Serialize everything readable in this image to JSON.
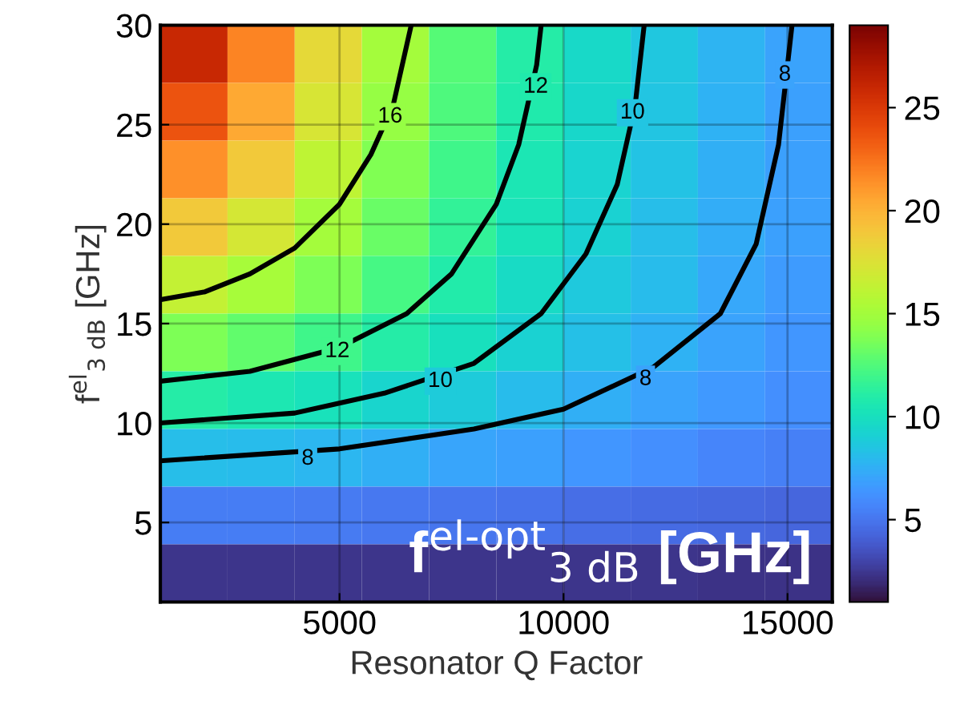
{
  "chart_data": {
    "type": "heatmap",
    "xlabel": "Resonator Q Factor",
    "ylabel": "f$^{el}$$_{3 dB}$ [GHz]",
    "xlim": [
      1000,
      16000
    ],
    "xticks": [
      5000,
      10000,
      15000
    ],
    "ylim": [
      1,
      30
    ],
    "yticks": [
      5,
      10,
      15,
      20,
      25,
      30
    ],
    "clim": [
      1,
      29
    ],
    "cticks": [
      5,
      10,
      15,
      20,
      25
    ],
    "grid": true,
    "cells": [
      [
        26.0,
        21.8,
        18.0,
        15.0,
        12.7,
        11.0,
        9.6,
        8.6,
        7.7,
        7.0
      ],
      [
        23.7,
        20.4,
        17.2,
        14.5,
        12.4,
        10.8,
        9.5,
        8.5,
        7.6,
        6.9
      ],
      [
        21.4,
        18.9,
        16.2,
        13.9,
        12.0,
        10.5,
        9.3,
        8.4,
        7.5,
        6.9
      ],
      [
        18.9,
        17.1,
        15.1,
        13.2,
        11.5,
        10.2,
        9.1,
        8.2,
        7.4,
        6.8
      ],
      [
        16.4,
        15.2,
        13.7,
        12.2,
        10.9,
        9.7,
        8.7,
        8.0,
        7.2,
        6.6
      ],
      [
        13.7,
        13.0,
        12.0,
        11.0,
        10.0,
        9.1,
        8.3,
        7.6,
        7.0,
        6.4
      ],
      [
        11.0,
        10.6,
        10.1,
        9.4,
        8.8,
        8.1,
        7.5,
        7.0,
        6.5,
        6.1
      ],
      [
        8.2,
        8.0,
        7.8,
        7.5,
        7.1,
        6.8,
        6.4,
        6.1,
        5.7,
        5.4
      ],
      [
        5.3,
        5.3,
        5.2,
        5.1,
        5.0,
        4.9,
        4.7,
        4.6,
        4.4,
        4.3
      ],
      [
        2.4,
        2.4,
        2.4,
        2.4,
        2.4,
        2.4,
        2.4,
        2.4,
        2.3,
        2.3
      ]
    ],
    "series": [
      {
        "type": "line",
        "color": "#000000",
        "x": [
          1000,
          2000,
          3000,
          4000,
          5000,
          5700,
          6200,
          6600
        ],
        "values": [
          16.2,
          16.6,
          17.5,
          18.8,
          21,
          23.5,
          26,
          30
        ]
      },
      {
        "type": "line",
        "color": "#000000",
        "x": [
          1000,
          3000,
          5000,
          6500,
          7500,
          8500,
          9000,
          9400,
          9500
        ],
        "values": [
          12.1,
          12.6,
          13.8,
          15.5,
          17.5,
          21,
          24,
          28,
          30
        ]
      },
      {
        "type": "line",
        "color": "#000000",
        "x": [
          1000,
          4000,
          6000,
          8000,
          9500,
          10500,
          11200,
          11600,
          11800
        ],
        "values": [
          10,
          10.5,
          11.5,
          13,
          15.5,
          18.5,
          22,
          26,
          30
        ]
      },
      {
        "type": "line",
        "color": "#000000",
        "x": [
          1000,
          5000,
          8000,
          10000,
          12000,
          13500,
          14300,
          14800,
          15000,
          15100
        ],
        "values": [
          8.1,
          8.7,
          9.7,
          10.7,
          12.8,
          15.5,
          19,
          24,
          28,
          30
        ]
      }
    ],
    "annotations": [
      {
        "text": "16",
        "x": 6130,
        "y": 25.4
      },
      {
        "text": "12",
        "x": 4950,
        "y": 13.6
      },
      {
        "text": "10",
        "x": 7250,
        "y": 12.1
      },
      {
        "text": "8",
        "x": 4290,
        "y": 8.2
      },
      {
        "text": "12",
        "x": 9380,
        "y": 26.9
      },
      {
        "text": "10",
        "x": 11540,
        "y": 25.6
      },
      {
        "text": "8",
        "x": 14940,
        "y": 27.5
      },
      {
        "text": "8",
        "x": 11830,
        "y": 12.2
      },
      "f$^{el-opt}$$_{3 dB}$ [GHz]"
    ]
  }
}
